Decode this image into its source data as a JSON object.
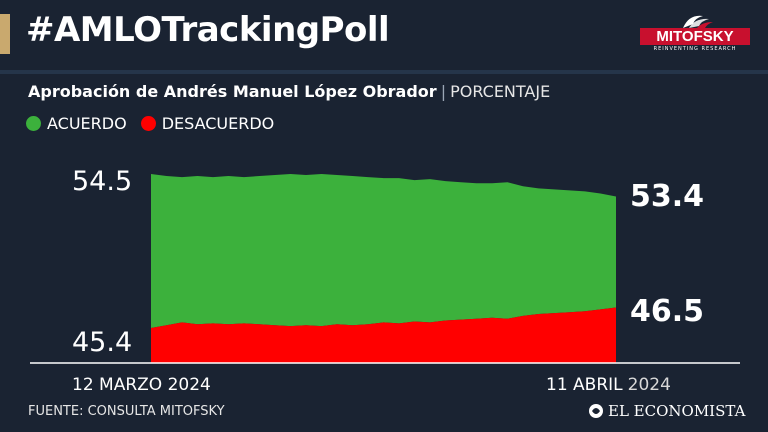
{
  "header": {
    "hashtag": "#AMLOTrackingPoll",
    "logo": {
      "name": "MITOFSKY",
      "tagline": "REINVENTING RESEARCH"
    }
  },
  "subtitle": {
    "main": "Aprobación de Andrés Manuel López Obrador",
    "separator": "|",
    "unit": "PORCENTAJE"
  },
  "legend": [
    {
      "label": "ACUERDO",
      "color": "#3cb13c"
    },
    {
      "label": "DESACUERDO",
      "color": "#ff0000"
    }
  ],
  "footer": {
    "source": "FUENTE: CONSULTA MITOFSKY",
    "publisher": "EL ECONOMISTA"
  },
  "colors": {
    "background": "#1a2332",
    "accent": "#c9a96e",
    "acuerdo": "#3cb13c",
    "desacuerdo": "#ff0000"
  },
  "chart_data": {
    "type": "area",
    "title": "Aprobación de Andrés Manuel López Obrador",
    "ylabel": "PORCENTAJE",
    "xlabel": "",
    "x_start_label": "12 MARZO 2024",
    "x_end_label": {
      "main": "11 ABRIL",
      "year": "2024"
    },
    "y_tick_labels": [
      "54.5",
      "45.4"
    ],
    "end_labels": {
      "acuerdo": "53.4",
      "desacuerdo": "46.5"
    },
    "x": [
      "12 MAR",
      "13 MAR",
      "14 MAR",
      "15 MAR",
      "16 MAR",
      "17 MAR",
      "18 MAR",
      "19 MAR",
      "20 MAR",
      "21 MAR",
      "22 MAR",
      "23 MAR",
      "24 MAR",
      "25 MAR",
      "26 MAR",
      "27 MAR",
      "28 MAR",
      "29 MAR",
      "30 MAR",
      "31 MAR",
      "1 ABR",
      "2 ABR",
      "3 ABR",
      "4 ABR",
      "5 ABR",
      "6 ABR",
      "7 ABR",
      "8 ABR",
      "9 ABR",
      "10 ABR",
      "11 ABR"
    ],
    "series": [
      {
        "name": "ACUERDO",
        "color": "#3cb13c",
        "values": [
          54.5,
          54.4,
          54.35,
          54.4,
          54.35,
          54.4,
          54.35,
          54.4,
          54.45,
          54.5,
          54.45,
          54.5,
          54.45,
          54.4,
          54.35,
          54.3,
          54.3,
          54.2,
          54.25,
          54.15,
          54.1,
          54.05,
          54.05,
          54.1,
          53.9,
          53.8,
          53.75,
          53.7,
          53.65,
          53.55,
          53.4
        ]
      },
      {
        "name": "DESACUERDO",
        "color": "#ff0000",
        "values": [
          45.4,
          45.55,
          45.7,
          45.6,
          45.65,
          45.6,
          45.65,
          45.6,
          45.55,
          45.5,
          45.55,
          45.5,
          45.6,
          45.55,
          45.6,
          45.7,
          45.65,
          45.75,
          45.7,
          45.8,
          45.85,
          45.9,
          45.95,
          45.9,
          46.05,
          46.15,
          46.2,
          46.25,
          46.3,
          46.4,
          46.5
        ]
      }
    ]
  }
}
